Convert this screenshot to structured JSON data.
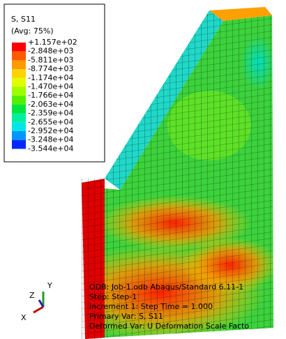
{
  "legend": {
    "title": "S, S11",
    "subtitle": "(Avg: 75%)",
    "labels": [
      "+1.157e+02",
      "-2.848e+03",
      "-5.811e+03",
      "-8.774e+03",
      "-1.174e+04",
      "-1.470e+04",
      "-1.766e+04",
      "-2.063e+04",
      "-2.359e+04",
      "-2.655e+04",
      "-2.952e+04",
      "-3.248e+04",
      "-3.544e+04"
    ],
    "colors": [
      "#ff0000",
      "#ff5a00",
      "#ff9a00",
      "#ffd200",
      "#e0ff00",
      "#9cff00",
      "#52f000",
      "#00e63c",
      "#00f0a0",
      "#00e6e6",
      "#0096ff",
      "#0028ff"
    ]
  },
  "triad": {
    "y": "Y",
    "z": "Z",
    "x": "X"
  },
  "info": [
    "ODB: Job-1.odb    Abaqus/Standard 6.11-1",
    "Step: Step-1",
    "Increment      1: Step Time =     1.000",
    "Primary Var: S, S11",
    "Deformed Var: U   Deformation Scale Facto"
  ]
}
